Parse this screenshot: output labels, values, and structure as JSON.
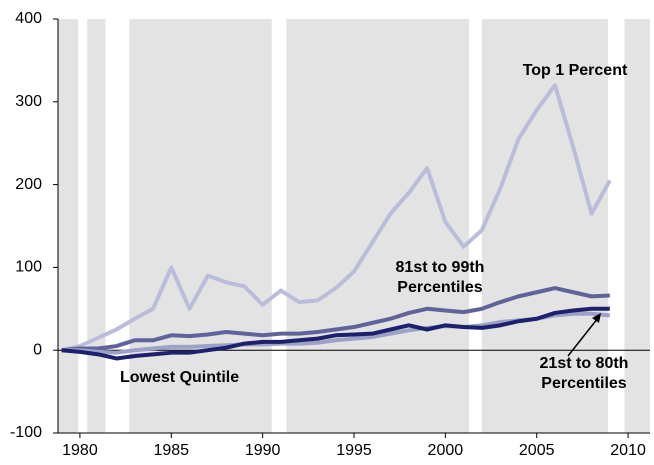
{
  "chart_data": {
    "type": "line",
    "x": [
      1979,
      1980,
      1981,
      1982,
      1983,
      1984,
      1985,
      1986,
      1987,
      1988,
      1989,
      1990,
      1991,
      1992,
      1993,
      1994,
      1995,
      1996,
      1997,
      1998,
      1999,
      2000,
      2001,
      2002,
      2003,
      2004,
      2005,
      2006,
      2007,
      2008,
      2009
    ],
    "series": [
      {
        "name": "Top 1 Percent",
        "color": "#b9bdd9",
        "values": [
          0,
          5,
          15,
          25,
          38,
          50,
          100,
          50,
          90,
          82,
          77,
          55,
          72,
          58,
          60,
          75,
          95,
          130,
          165,
          190,
          220,
          155,
          125,
          145,
          195,
          255,
          290,
          320,
          245,
          165,
          205
        ]
      },
      {
        "name": "81st to 99th Percentiles",
        "color": "#5f6399",
        "values": [
          0,
          2,
          2,
          5,
          12,
          12,
          18,
          17,
          19,
          22,
          20,
          18,
          20,
          20,
          22,
          25,
          28,
          33,
          38,
          45,
          50,
          48,
          46,
          50,
          58,
          65,
          70,
          75,
          70,
          65,
          66
        ]
      },
      {
        "name": "21st to 80th Percentiles",
        "color": "#9ca1c7",
        "values": [
          0,
          0,
          -2,
          -3,
          0,
          2,
          4,
          4,
          5,
          6,
          7,
          7,
          8,
          8,
          9,
          12,
          14,
          16,
          20,
          24,
          27,
          29,
          28,
          30,
          34,
          36,
          38,
          42,
          44,
          44,
          42
        ]
      },
      {
        "name": "Lowest Quintile",
        "color": "#1d206c",
        "values": [
          0,
          -2,
          -5,
          -10,
          -7,
          -5,
          -3,
          -3,
          0,
          3,
          8,
          10,
          10,
          12,
          14,
          18,
          19,
          20,
          25,
          30,
          25,
          30,
          28,
          27,
          30,
          35,
          38,
          45,
          48,
          50,
          50
        ]
      }
    ],
    "shaded_spans": [
      [
        1978.8,
        1979.9
      ],
      [
        1980.4,
        1981.4
      ],
      [
        1982.7,
        1990.5
      ],
      [
        1991.3,
        2001.3
      ],
      [
        2002,
        2008.9
      ],
      [
        2009.8,
        2011.2
      ]
    ],
    "xlim": [
      1978.8,
      2011.2
    ],
    "xticks": [
      1980,
      1985,
      1990,
      1995,
      2000,
      2005,
      2010
    ],
    "ylim": [
      -100,
      400
    ],
    "yticks": [
      -100,
      0,
      100,
      200,
      300,
      400
    ]
  }
}
